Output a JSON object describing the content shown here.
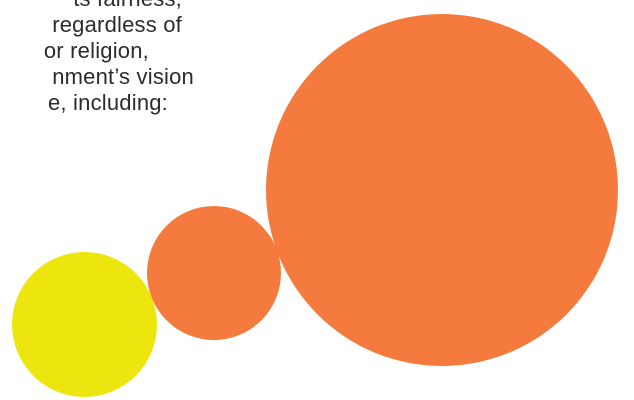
{
  "text": {
    "line_1": "ts fairness,",
    "line_2": "regardless of",
    "line_3": "or religion,",
    "line_4": "nment’s vision",
    "line_5": "e, including:"
  },
  "colors": {
    "text": "#2c2c2c",
    "orange": "#F47B3D",
    "yellow": "#EDE60E",
    "background": "#FFFFFF"
  },
  "shapes": {
    "large": "orange-circle",
    "medium": "orange-circle",
    "small": "yellow-circle"
  }
}
